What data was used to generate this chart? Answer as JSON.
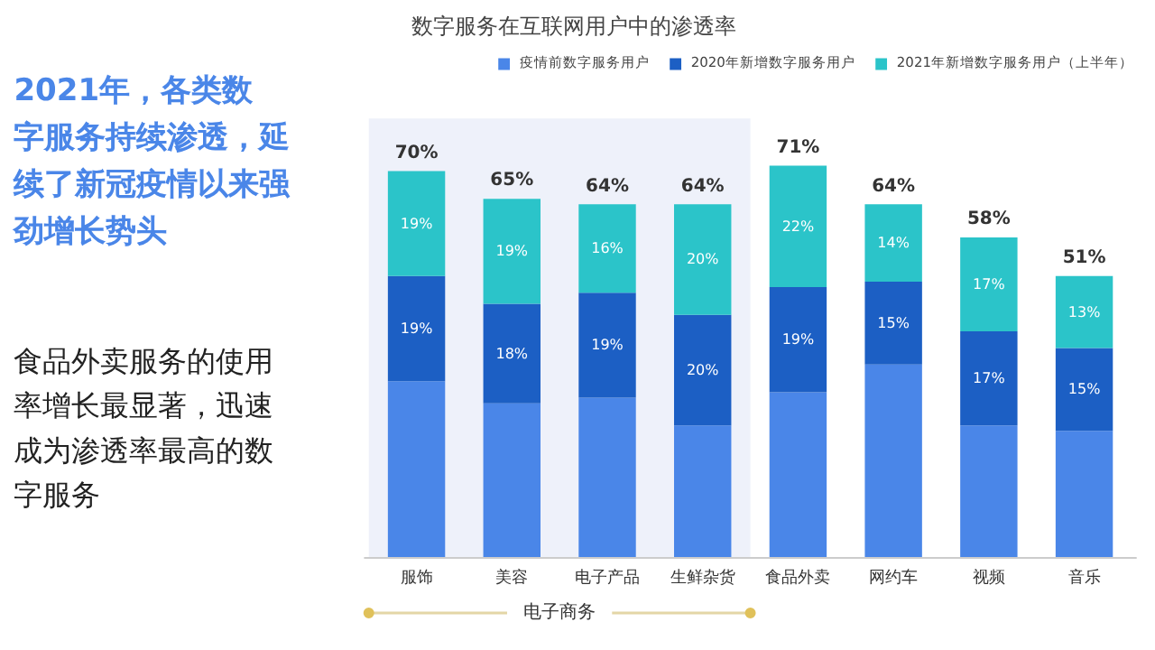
{
  "chart_data": {
    "type": "bar",
    "stacked": true,
    "title": "数字服务在互联网用户中的渗透率",
    "categories": [
      "服饰",
      "美容",
      "电子产品",
      "生鲜杂货",
      "食品外卖",
      "网约车",
      "视频",
      "音乐"
    ],
    "series": [
      {
        "name": "疫情前数字服务用户",
        "color": "#4a86e8",
        "values": [
          32,
          28,
          29,
          24,
          30,
          35,
          24,
          23
        ]
      },
      {
        "name": "2020年新增数字服务用户",
        "color": "#1c5fc4",
        "values": [
          19,
          18,
          19,
          20,
          19,
          15,
          17,
          15
        ],
        "value_labels": [
          "19%",
          "18%",
          "19%",
          "20%",
          "19%",
          "15%",
          "17%",
          "15%"
        ]
      },
      {
        "name": "2021年新增数字服务用户（上半年）",
        "color": "#2bc4c9",
        "values": [
          19,
          19,
          16,
          20,
          22,
          14,
          17,
          13
        ],
        "value_labels": [
          "19%",
          "19%",
          "16%",
          "20%",
          "22%",
          "14%",
          "17%",
          "13%"
        ]
      }
    ],
    "totals": [
      "70%",
      "65%",
      "64%",
      "64%",
      "71%",
      "64%",
      "58%",
      "51%"
    ],
    "bands": [
      {
        "axis": "x",
        "from": "服饰",
        "to": "生鲜杂货",
        "label": "电子商务",
        "color": "#eef1fa"
      }
    ],
    "annotations": [
      "2021年，各类数字服务持续渗透，延续了新冠疫情以来强劲增长势头",
      "食品外卖服务的使用率增长最显著，迅速成为渗透率最高的数字服务"
    ],
    "legend": "top",
    "grid": false
  }
}
